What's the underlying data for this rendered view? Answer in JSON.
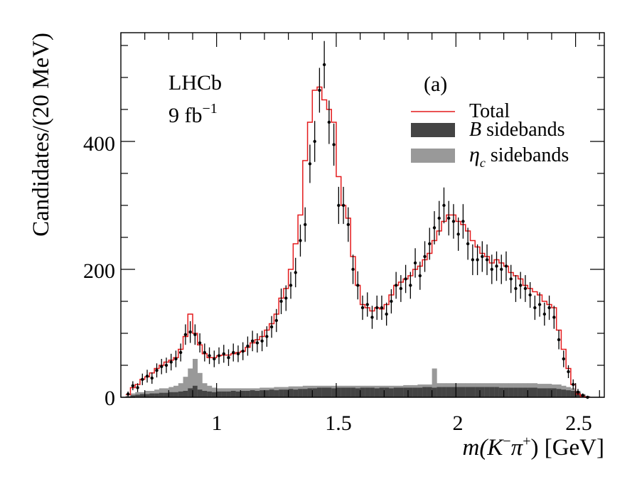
{
  "chart_data": {
    "type": "histogram",
    "annotation_experiment": "LHCb",
    "annotation_lumi": "9 fb",
    "annotation_lumi_sup": "−1",
    "panel_label": "(a)",
    "ylabel": "Candidates/(20 MeV)",
    "xlabel": "m(K",
    "xlabel_sup1": "−",
    "xlabel_pi": "π",
    "xlabel_sup2": "+",
    "xlabel_units": ") [GeV]",
    "x_ticks": [
      "1",
      "1.5",
      "2",
      "2.5"
    ],
    "y_ticks": [
      "0",
      "200",
      "400"
    ],
    "xlim": [
      0.6,
      2.62
    ],
    "ylim": [
      0,
      570
    ],
    "bin_width": 0.02,
    "legend": {
      "total": "Total",
      "b_sidebands_sym": "B",
      "b_sidebands_text": " sidebands",
      "etac_sidebands_sym": "η",
      "etac_sidebands_sub": "c",
      "etac_sidebands_text": " sidebands"
    },
    "colors": {
      "total": "#e41a1c",
      "b_sidebands": "#444444",
      "etac_sidebands": "#999999",
      "data": "#000000"
    },
    "x_bins": [
      0.63,
      0.65,
      0.67,
      0.69,
      0.71,
      0.73,
      0.75,
      0.77,
      0.79,
      0.81,
      0.83,
      0.85,
      0.87,
      0.89,
      0.91,
      0.93,
      0.95,
      0.97,
      0.99,
      1.01,
      1.03,
      1.05,
      1.07,
      1.09,
      1.11,
      1.13,
      1.15,
      1.17,
      1.19,
      1.21,
      1.23,
      1.25,
      1.27,
      1.29,
      1.31,
      1.33,
      1.35,
      1.37,
      1.39,
      1.41,
      1.43,
      1.45,
      1.47,
      1.49,
      1.51,
      1.53,
      1.55,
      1.57,
      1.59,
      1.61,
      1.63,
      1.65,
      1.67,
      1.69,
      1.71,
      1.73,
      1.75,
      1.77,
      1.79,
      1.81,
      1.83,
      1.85,
      1.87,
      1.89,
      1.91,
      1.93,
      1.95,
      1.97,
      1.99,
      2.01,
      2.03,
      2.05,
      2.07,
      2.09,
      2.11,
      2.13,
      2.15,
      2.17,
      2.19,
      2.21,
      2.23,
      2.25,
      2.27,
      2.29,
      2.31,
      2.33,
      2.35,
      2.37,
      2.39,
      2.41,
      2.43,
      2.45,
      2.47,
      2.49,
      2.51,
      2.53,
      2.55
    ],
    "data_values": [
      5,
      18,
      15,
      28,
      33,
      30,
      42,
      48,
      50,
      55,
      60,
      70,
      98,
      102,
      98,
      85,
      70,
      65,
      60,
      65,
      68,
      62,
      70,
      68,
      72,
      80,
      88,
      85,
      88,
      95,
      110,
      120,
      150,
      155,
      175,
      195,
      245,
      270,
      365,
      400,
      480,
      520,
      430,
      395,
      300,
      300,
      270,
      200,
      175,
      140,
      145,
      125,
      140,
      140,
      130,
      150,
      175,
      170,
      185,
      175,
      210,
      190,
      220,
      240,
      265,
      280,
      300,
      280,
      275,
      255,
      275,
      240,
      215,
      215,
      220,
      215,
      200,
      205,
      200,
      205,
      185,
      170,
      175,
      170,
      160,
      140,
      145,
      130,
      140,
      125,
      90,
      60,
      40,
      20,
      8,
      3,
      0
    ],
    "data_errors": [
      4,
      7,
      7,
      9,
      10,
      9,
      11,
      12,
      12,
      13,
      13,
      14,
      16,
      17,
      16,
      15,
      14,
      13,
      13,
      13,
      14,
      13,
      14,
      13,
      14,
      15,
      16,
      15,
      16,
      16,
      17,
      18,
      20,
      20,
      21,
      23,
      25,
      27,
      30,
      32,
      35,
      37,
      34,
      33,
      29,
      29,
      27,
      23,
      22,
      19,
      19,
      18,
      19,
      19,
      18,
      19,
      21,
      21,
      22,
      21,
      23,
      22,
      24,
      25,
      26,
      27,
      28,
      27,
      27,
      26,
      27,
      25,
      24,
      24,
      24,
      24,
      23,
      23,
      23,
      23,
      22,
      21,
      21,
      21,
      20,
      19,
      19,
      18,
      19,
      18,
      15,
      13,
      10,
      8,
      5,
      3,
      2
    ],
    "total_values": [
      4,
      15,
      20,
      28,
      32,
      38,
      45,
      50,
      55,
      58,
      62,
      75,
      95,
      130,
      100,
      82,
      68,
      62,
      62,
      65,
      66,
      66,
      68,
      70,
      72,
      78,
      85,
      90,
      95,
      105,
      115,
      130,
      155,
      170,
      200,
      240,
      285,
      370,
      430,
      480,
      485,
      465,
      450,
      430,
      345,
      300,
      280,
      220,
      175,
      145,
      140,
      135,
      140,
      138,
      145,
      160,
      175,
      180,
      185,
      190,
      200,
      205,
      215,
      225,
      245,
      260,
      275,
      285,
      285,
      275,
      270,
      260,
      245,
      235,
      225,
      220,
      210,
      215,
      210,
      205,
      195,
      190,
      185,
      175,
      170,
      165,
      160,
      150,
      145,
      140,
      105,
      75,
      45,
      20,
      5,
      1,
      0
    ],
    "etac_sideband_values": [
      2,
      6,
      8,
      8,
      10,
      10,
      12,
      14,
      14,
      16,
      18,
      22,
      32,
      45,
      60,
      38,
      22,
      18,
      15,
      14,
      14,
      14,
      14,
      14,
      14,
      14,
      14,
      14,
      15,
      15,
      15,
      16,
      16,
      16,
      17,
      17,
      17,
      18,
      18,
      18,
      18,
      18,
      18,
      18,
      18,
      18,
      18,
      18,
      18,
      18,
      18,
      18,
      18,
      18,
      18,
      18,
      18,
      18,
      19,
      19,
      19,
      20,
      20,
      20,
      45,
      22,
      22,
      22,
      22,
      22,
      22,
      22,
      22,
      22,
      22,
      22,
      22,
      22,
      22,
      22,
      22,
      22,
      22,
      22,
      22,
      22,
      21,
      21,
      21,
      20,
      20,
      18,
      16,
      14,
      10,
      5,
      2
    ],
    "b_sideband_values": [
      1,
      3,
      4,
      5,
      5,
      6,
      6,
      7,
      7,
      8,
      8,
      9,
      10,
      14,
      18,
      12,
      10,
      9,
      8,
      9,
      9,
      9,
      10,
      9,
      10,
      10,
      11,
      10,
      11,
      11,
      12,
      11,
      12,
      12,
      13,
      12,
      13,
      13,
      14,
      14,
      15,
      15,
      15,
      14,
      15,
      15,
      15,
      15,
      14,
      15,
      15,
      15,
      14,
      15,
      15,
      14,
      15,
      15,
      15,
      15,
      15,
      15,
      16,
      16,
      15,
      16,
      16,
      16,
      16,
      16,
      16,
      16,
      16,
      16,
      16,
      16,
      16,
      16,
      15,
      15,
      15,
      15,
      15,
      15,
      15,
      15,
      14,
      14,
      14,
      14,
      13,
      12,
      11,
      10,
      8,
      4,
      1
    ]
  }
}
